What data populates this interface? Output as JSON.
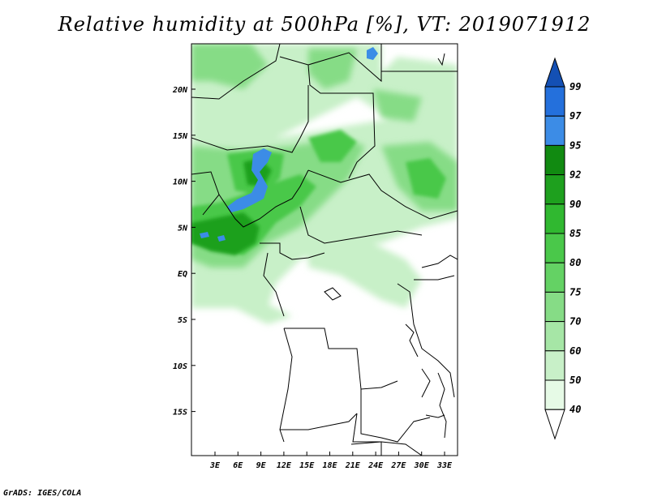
{
  "title": "Relative humidity at 500hPa [%], VT: 2019071912",
  "credit": "GrADS: IGES/COLA",
  "map": {
    "lon_ticks": [
      "3E",
      "6E",
      "9E",
      "12E",
      "15E",
      "18E",
      "21E",
      "24E",
      "27E",
      "30E",
      "33E"
    ],
    "lat_ticks": [
      "20N",
      "15N",
      "10N",
      "5N",
      "EQ",
      "5S",
      "10S",
      "15S"
    ],
    "region": "Central and West Africa"
  },
  "colorbar": {
    "levels": [
      "40",
      "50",
      "60",
      "70",
      "75",
      "80",
      "85",
      "90",
      "92",
      "95",
      "97",
      "99"
    ],
    "colors": [
      "#ffffff",
      "#e6fae6",
      "#c8f0c8",
      "#a6e6a6",
      "#86dc86",
      "#64d264",
      "#4ac84a",
      "#30b830",
      "#1ea01e",
      "#118a11",
      "#3c8ce6",
      "#2470dc",
      "#1450b4"
    ]
  }
}
